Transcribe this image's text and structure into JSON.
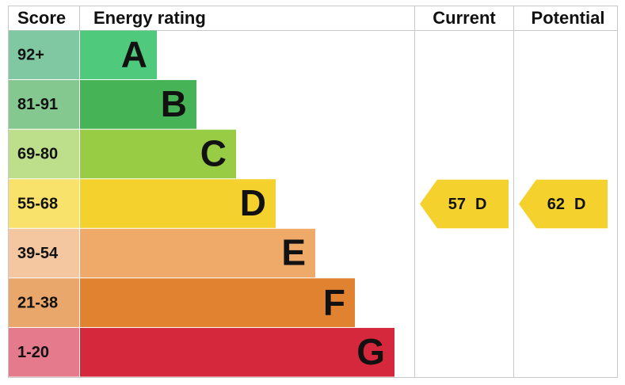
{
  "header": {
    "score": "Score",
    "rating": "Energy rating",
    "current": "Current",
    "potential": "Potential"
  },
  "rows": [
    {
      "score": "92+",
      "rating": "A",
      "color": "#4fc97c",
      "score_color": "#80c8a2"
    },
    {
      "score": "81-91",
      "rating": "B",
      "color": "#45b356",
      "score_color": "#84c78f"
    },
    {
      "score": "69-80",
      "rating": "C",
      "color": "#98cc45",
      "score_color": "#bddf8c"
    },
    {
      "score": "55-68",
      "rating": "D",
      "color": "#f4d12c",
      "score_color": "#f9e26c"
    },
    {
      "score": "39-54",
      "rating": "E",
      "color": "#efaa6a",
      "score_color": "#f4c7a0"
    },
    {
      "score": "21-38",
      "rating": "F",
      "color": "#e0822f",
      "score_color": "#eaa76c"
    },
    {
      "score": "1-20",
      "rating": "G",
      "color": "#d6283c",
      "score_color": "#e57a8c"
    }
  ],
  "current": {
    "value": 57,
    "rating": "D"
  },
  "potential": {
    "value": 62,
    "rating": "D"
  }
}
